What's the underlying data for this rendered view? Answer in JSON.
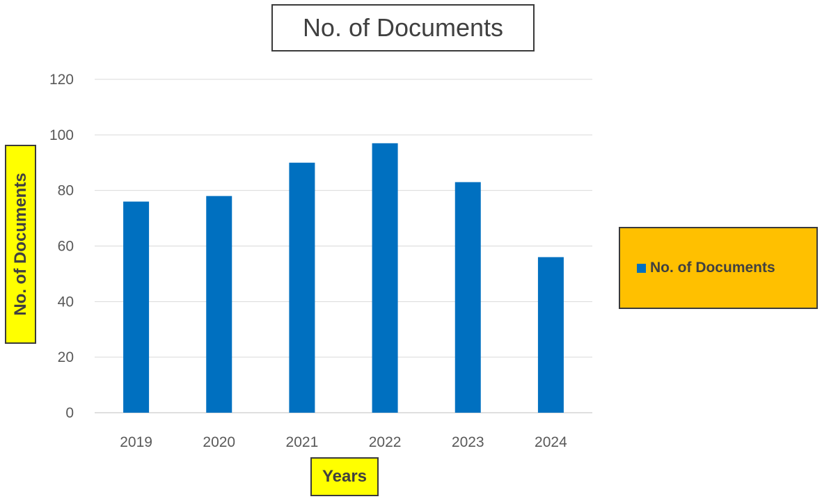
{
  "chart_data": {
    "type": "bar",
    "title": "No. of Documents",
    "xlabel": "Years",
    "ylabel": "No. of Documents",
    "categories": [
      "2019",
      "2020",
      "2021",
      "2022",
      "2023",
      "2024"
    ],
    "series": [
      {
        "name": "No. of Documents",
        "values": [
          76,
          78,
          90,
          97,
          83,
          56
        ],
        "color": "#0070c0"
      }
    ],
    "ylim": [
      0,
      120
    ],
    "yticks": [
      0,
      20,
      40,
      60,
      80,
      100,
      120
    ],
    "grid": true,
    "legend": {
      "position": "right",
      "entries": [
        "No. of Documents"
      ]
    },
    "colors": {
      "bar": "#0070c0",
      "axis_label_background": "#ffff00",
      "legend_background": "#ffc000"
    }
  }
}
